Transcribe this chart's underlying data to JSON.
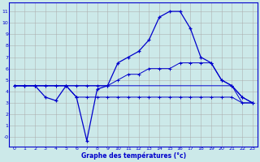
{
  "xlabel": "Graphe des températures (°c)",
  "background_color": "#cce9e9",
  "grid_color": "#aaaaaa",
  "line_color": "#0000cc",
  "x_ticks": [
    0,
    1,
    2,
    3,
    4,
    5,
    6,
    7,
    8,
    9,
    10,
    11,
    12,
    13,
    14,
    15,
    16,
    17,
    18,
    19,
    20,
    21,
    22,
    23
  ],
  "y_ticks": [
    0,
    1,
    2,
    3,
    4,
    5,
    6,
    7,
    8,
    9,
    10,
    11
  ],
  "y_tick_labels": [
    "-0",
    "1",
    "2",
    "3",
    "4",
    "5",
    "6",
    "7",
    "8",
    "9",
    "10",
    "11"
  ],
  "ylim": [
    -0.8,
    11.8
  ],
  "xlim": [
    -0.5,
    23.5
  ],
  "series": {
    "temp_actual": {
      "x": [
        0,
        1,
        2,
        3,
        4,
        5,
        6,
        7,
        8,
        9,
        10,
        11,
        12,
        13,
        14,
        15,
        16,
        17,
        18,
        19,
        20,
        21,
        22,
        23
      ],
      "y": [
        4.5,
        4.5,
        4.5,
        3.5,
        3.2,
        4.5,
        3.5,
        -0.3,
        4.2,
        4.5,
        6.5,
        7.0,
        7.5,
        8.5,
        10.5,
        11.0,
        11.0,
        9.5,
        7.0,
        6.5,
        5.0,
        4.5,
        3.5,
        3.0
      ]
    },
    "temp_min": {
      "x": [
        0,
        1,
        2,
        3,
        4,
        5,
        6,
        7,
        8,
        9,
        10,
        11,
        12,
        13,
        14,
        15,
        16,
        17,
        18,
        19,
        20,
        21,
        22,
        23
      ],
      "y": [
        4.5,
        4.5,
        4.5,
        4.5,
        4.5,
        4.5,
        3.5,
        3.5,
        3.5,
        3.5,
        3.5,
        3.5,
        3.5,
        3.5,
        3.5,
        3.5,
        3.5,
        3.5,
        3.5,
        3.5,
        3.5,
        3.5,
        3.0,
        3.0
      ]
    },
    "temp_max": {
      "x": [
        0,
        1,
        2,
        3,
        4,
        5,
        6,
        7,
        8,
        9,
        10,
        11,
        12,
        13,
        14,
        15,
        16,
        17,
        18,
        19,
        20,
        21,
        22,
        23
      ],
      "y": [
        4.5,
        4.5,
        4.5,
        4.5,
        4.5,
        4.5,
        4.5,
        4.5,
        4.5,
        4.5,
        5.0,
        5.5,
        5.5,
        6.0,
        6.0,
        6.0,
        6.5,
        6.5,
        6.5,
        6.5,
        5.0,
        4.5,
        3.5,
        3.0
      ]
    },
    "temp_avg": {
      "x": [
        0,
        1,
        2,
        3,
        4,
        5,
        6,
        7,
        8,
        9,
        10,
        11,
        12,
        13,
        14,
        15,
        16,
        17,
        18,
        19,
        20,
        21,
        22,
        23
      ],
      "y": [
        4.5,
        4.5,
        4.5,
        4.5,
        4.5,
        4.5,
        4.5,
        4.5,
        4.5,
        4.5,
        4.5,
        4.5,
        4.5,
        4.5,
        4.5,
        4.5,
        4.5,
        4.5,
        4.5,
        4.5,
        4.5,
        4.5,
        3.0,
        3.0
      ]
    }
  }
}
